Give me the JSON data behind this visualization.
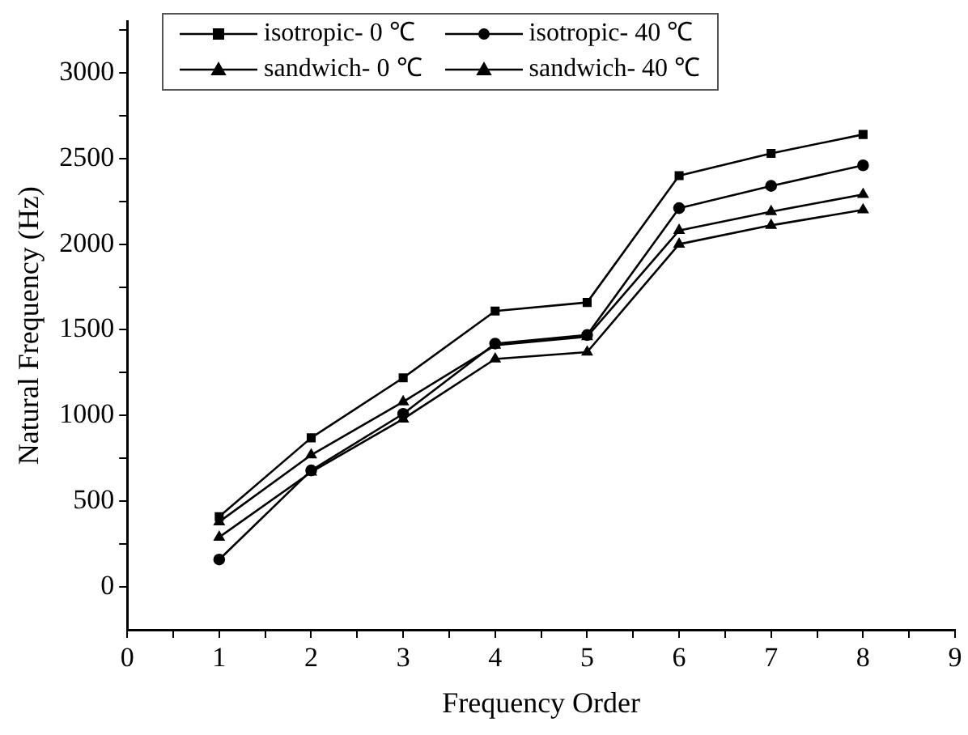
{
  "chart_data": {
    "type": "line",
    "xlabel": "Frequency Order",
    "ylabel": "Natural Frequency (Hz)",
    "x": [
      1,
      2,
      3,
      4,
      5,
      6,
      7,
      8
    ],
    "series": [
      {
        "name": "isotropic- 0 ℃",
        "color": "#000000",
        "marker": "square",
        "values": [
          410,
          870,
          1220,
          1610,
          1660,
          2400,
          2530,
          2640
        ]
      },
      {
        "name": "isotropic- 40 ℃",
        "color": "#000000",
        "marker": "circle",
        "values": [
          160,
          680,
          1010,
          1420,
          1470,
          2210,
          2340,
          2460
        ]
      },
      {
        "name": "sandwich- 0 ℃",
        "color": "#000000",
        "marker": "triangle",
        "values": [
          380,
          770,
          1080,
          1410,
          1460,
          2080,
          2190,
          2290
        ]
      },
      {
        "name": "sandwich- 40 ℃",
        "color": "#000000",
        "marker": "triangle",
        "values": [
          290,
          670,
          980,
          1330,
          1370,
          2000,
          2110,
          2200
        ]
      }
    ],
    "xlim": [
      0,
      9
    ],
    "xticks": [
      0,
      {
        "value": 0.5,
        "label": null
      },
      1,
      {
        "value": 1.5,
        "label": null
      },
      2,
      {
        "value": 2.5,
        "label": null
      },
      3,
      {
        "value": 3.5,
        "label": null
      },
      4,
      {
        "value": 4.5,
        "label": null
      },
      5,
      {
        "value": 5.5,
        "label": null
      },
      6,
      {
        "value": 6.5,
        "label": null
      },
      7,
      {
        "value": 7.5,
        "label": null
      },
      8,
      {
        "value": 8.5,
        "label": null
      },
      9
    ],
    "ylim": [
      -250,
      3300
    ],
    "yticks": [
      0,
      {
        "value": 250,
        "label": null
      },
      500,
      {
        "value": 750,
        "label": null
      },
      1000,
      {
        "value": 1250,
        "label": null
      },
      1500,
      {
        "value": 1750,
        "label": null
      },
      2000,
      {
        "value": 2250,
        "label": null
      },
      2500,
      {
        "value": 2750,
        "label": null
      },
      3000,
      {
        "value": 3250,
        "label": null
      }
    ],
    "grid": false,
    "legend": "top",
    "line_style": "solid"
  }
}
